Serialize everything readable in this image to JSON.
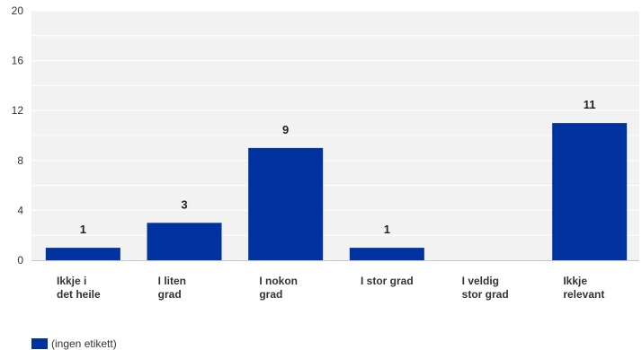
{
  "chart_data": {
    "type": "bar",
    "categories": [
      [
        "Ikkje i",
        "det heile"
      ],
      [
        "I liten",
        "grad"
      ],
      [
        "I nokon",
        "grad"
      ],
      [
        "I stor grad"
      ],
      [
        "I veldig",
        "stor grad"
      ],
      [
        "Ikkje",
        "relevant"
      ]
    ],
    "series": [
      {
        "name": "(ingen etikett)",
        "values": [
          1,
          3,
          9,
          1,
          0,
          11
        ]
      }
    ],
    "data_labels": [
      "1",
      "3",
      "9",
      "1",
      "",
      "11"
    ],
    "ylim": [
      0,
      20
    ],
    "yticks": [
      0,
      4,
      8,
      12,
      16,
      20
    ],
    "grid": true,
    "legend_position": "bottom-left",
    "colors": {
      "bar": "#0033a0",
      "plot_bg": "#f2f2f2",
      "grid": "#ffffff"
    }
  }
}
